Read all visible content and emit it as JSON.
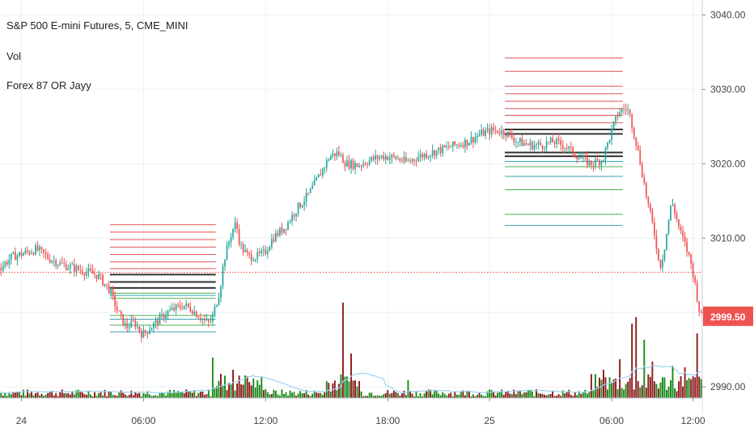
{
  "header": {
    "symbol_line": "S&P 500 E-mini Futures, 5, CME_MINI",
    "indicator1": "Vol",
    "indicator2": "Forex 87 OR  Jayy"
  },
  "chart_data": {
    "type": "candlestick",
    "ylim": [
      2988.5,
      3042
    ],
    "y_ticks": [
      "3040.00",
      "3030.00",
      "3020.00",
      "3010.00",
      "3000.00",
      "2990.00"
    ],
    "x_ticks": [
      "24",
      "06:00",
      "12:00",
      "18:00",
      "25",
      "06:00",
      "12:00"
    ],
    "last_price": "2999.50",
    "reference_line": 3005.4,
    "price_path": [
      [
        0,
        3006
      ],
      [
        6,
        3007.5
      ],
      [
        12,
        3008
      ],
      [
        18,
        3008.5
      ],
      [
        24,
        3007.3
      ],
      [
        30,
        3006.5
      ],
      [
        36,
        3006
      ],
      [
        42,
        3005.5
      ],
      [
        48,
        3005
      ],
      [
        54,
        3003
      ],
      [
        58,
        3000
      ],
      [
        62,
        2998
      ],
      [
        66,
        2998.7
      ],
      [
        70,
        2997
      ],
      [
        74,
        2998
      ],
      [
        78,
        2999
      ],
      [
        82,
        3000
      ],
      [
        86,
        3000.5
      ],
      [
        90,
        3001
      ],
      [
        94,
        3000.5
      ],
      [
        98,
        2999.5
      ],
      [
        102,
        2998.5
      ],
      [
        104,
        2999
      ],
      [
        108,
        3003
      ],
      [
        110,
        3007
      ],
      [
        112,
        3009
      ],
      [
        114,
        3011
      ],
      [
        116,
        3012
      ],
      [
        118,
        3009
      ],
      [
        122,
        3007.5
      ],
      [
        126,
        3007.5
      ],
      [
        130,
        3008
      ],
      [
        134,
        3010
      ],
      [
        140,
        3011.5
      ],
      [
        146,
        3014
      ],
      [
        152,
        3016
      ],
      [
        158,
        3019
      ],
      [
        162,
        3021
      ],
      [
        166,
        3021.5
      ],
      [
        170,
        3020
      ],
      [
        176,
        3019.8
      ],
      [
        182,
        3020.5
      ],
      [
        188,
        3021
      ],
      [
        194,
        3020.8
      ],
      [
        200,
        3020.2
      ],
      [
        206,
        3021
      ],
      [
        212,
        3021.5
      ],
      [
        218,
        3022
      ],
      [
        224,
        3022.5
      ],
      [
        230,
        3023
      ],
      [
        236,
        3024
      ],
      [
        242,
        3024.5
      ],
      [
        248,
        3024.3
      ],
      [
        254,
        3023
      ],
      [
        260,
        3022.5
      ],
      [
        266,
        3022.5
      ],
      [
        272,
        3023
      ],
      [
        278,
        3022.3
      ],
      [
        284,
        3021
      ],
      [
        290,
        3020
      ],
      [
        296,
        3020.5
      ],
      [
        300,
        3024
      ],
      [
        304,
        3027
      ],
      [
        308,
        3027.5
      ],
      [
        310,
        3026
      ],
      [
        314,
        3021
      ],
      [
        318,
        3015
      ],
      [
        322,
        3010
      ],
      [
        324,
        3006
      ],
      [
        326,
        3008
      ],
      [
        330,
        3015
      ],
      [
        332,
        3013
      ],
      [
        334,
        3011
      ],
      [
        338,
        3008
      ],
      [
        340,
        3006
      ],
      [
        342,
        3003
      ],
      [
        344,
        2999.5
      ]
    ],
    "opening_range_levels": [
      {
        "from": 54,
        "to": 106,
        "red": [
          3011.8,
          3010.8,
          3009.8,
          3008.8,
          3007.8,
          3006.8,
          3005.9
        ],
        "black": [
          3005.1,
          3004.1,
          3003.3
        ],
        "green": [
          3002.6,
          3001.9,
          2999.6,
          2998.3
        ],
        "teal": [
          3002.3,
          2999.1,
          2997.4
        ]
      },
      {
        "from": 248,
        "to": 306,
        "red": [
          3034.2,
          3032.4,
          3030.4,
          3029.4,
          3028.4,
          3027.4,
          3026.5,
          3025.5
        ],
        "black": [
          3024.6,
          3024.0,
          3021.5,
          3021.0
        ],
        "green": [
          3019.6,
          3016.5,
          3013.2
        ],
        "teal": [
          3020.3,
          3018.3,
          3011.7
        ]
      }
    ],
    "volume": {
      "ma_visible": true,
      "spikes": [
        [
          104,
          50
        ],
        [
          108,
          30
        ],
        [
          114,
          35
        ],
        [
          120,
          28
        ],
        [
          126,
          22
        ],
        [
          168,
          118
        ],
        [
          172,
          55
        ],
        [
          200,
          22
        ],
        [
          296,
          35
        ],
        [
          304,
          48
        ],
        [
          310,
          92
        ],
        [
          312,
          100
        ],
        [
          316,
          72
        ],
        [
          320,
          45
        ],
        [
          330,
          40
        ],
        [
          336,
          38
        ],
        [
          342,
          80
        ]
      ]
    },
    "colors": {
      "up": "#26a69a",
      "down": "#ef5350",
      "vol_up": "#1a8a1a",
      "vol_down": "#8b1a1a",
      "level_red": "#e05050",
      "level_black": "#333333",
      "level_green": "#4caf50",
      "level_teal": "#3aa0b0",
      "price_label_bg": "#ef5350",
      "grid": "#eef0f4"
    }
  }
}
